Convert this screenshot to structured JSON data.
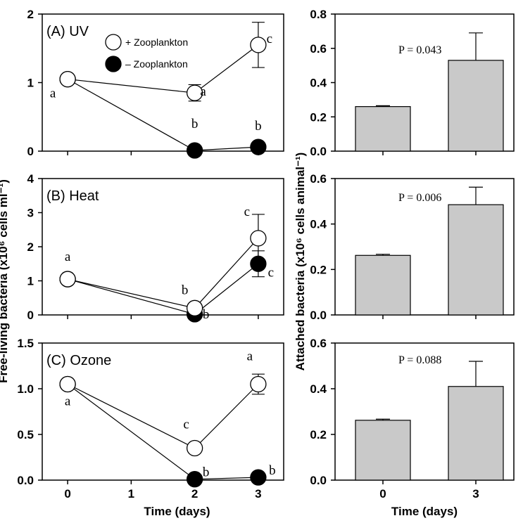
{
  "colors": {
    "open_marker": "#ffffff",
    "filled_marker": "#000000",
    "bar_fill": "#c9c9c9",
    "axis": "#000000"
  },
  "left_ylabel": "Free-living bacteria (x10⁶ cells ml⁻¹)",
  "right_ylabel": "Attached bacteria (x10⁶ cells animal⁻¹)",
  "chart_data": [
    {
      "type": "line",
      "title": "(A) UV",
      "xlabel": "",
      "ylabel": "Free-living bacteria (x10⁶ cells ml⁻¹)",
      "x_ticks": [
        0,
        1,
        2,
        3
      ],
      "x_tick_labels": [],
      "xlim": [
        -0.4,
        3.4
      ],
      "ylim": [
        0,
        2
      ],
      "y_ticks": [
        0,
        1,
        2
      ],
      "y_tick_labels": [
        "0",
        "1",
        "2"
      ],
      "legend": {
        "position": "top-right",
        "entries": [
          "+ Zooplankton",
          "– Zooplankton"
        ]
      },
      "series": [
        {
          "name": "+ Zooplankton",
          "marker": "open",
          "x": [
            0,
            2,
            3
          ],
          "y": [
            1.05,
            0.85,
            1.55
          ],
          "err": [
            0,
            0.12,
            0.33
          ],
          "labels": [
            "a",
            "a",
            "c"
          ]
        },
        {
          "name": "– Zooplankton",
          "marker": "filled",
          "x": [
            0,
            2,
            3
          ],
          "y": [
            1.05,
            0.01,
            0.06
          ],
          "err": [
            0,
            0,
            0
          ],
          "labels": [
            "",
            "b",
            "b"
          ]
        }
      ]
    },
    {
      "type": "line",
      "title": "(B) Heat",
      "xlabel": "",
      "ylabel": "Free-living bacteria (x10⁶ cells ml⁻¹)",
      "x_ticks": [
        0,
        1,
        2,
        3
      ],
      "x_tick_labels": [],
      "xlim": [
        -0.4,
        3.4
      ],
      "ylim": [
        0,
        4
      ],
      "y_ticks": [
        0,
        1,
        2,
        3,
        4
      ],
      "y_tick_labels": [
        "0",
        "1",
        "2",
        "3",
        "4"
      ],
      "series": [
        {
          "name": "+ Zooplankton",
          "marker": "open",
          "x": [
            0,
            2,
            3
          ],
          "y": [
            1.05,
            0.2,
            2.25
          ],
          "err": [
            0,
            0,
            0.7
          ],
          "labels": [
            "a",
            "b",
            "c"
          ]
        },
        {
          "name": "– Zooplankton",
          "marker": "filled",
          "x": [
            0,
            2,
            3
          ],
          "y": [
            1.05,
            0.02,
            1.5
          ],
          "err": [
            0,
            0,
            0.38
          ],
          "labels": [
            "",
            "b",
            "c"
          ]
        }
      ]
    },
    {
      "type": "line",
      "title": "(C) Ozone",
      "xlabel": "Time (days)",
      "ylabel": "Free-living bacteria (x10⁶ cells ml⁻¹)",
      "x_ticks": [
        0,
        1,
        2,
        3
      ],
      "x_tick_labels": [
        "0",
        "1",
        "2",
        "3"
      ],
      "xlim": [
        -0.4,
        3.4
      ],
      "ylim": [
        0,
        1.5
      ],
      "y_ticks": [
        0,
        0.5,
        1,
        1.5
      ],
      "y_tick_labels": [
        "0.0",
        "0.5",
        "1.0",
        "1.5"
      ],
      "series": [
        {
          "name": "+ Zooplankton",
          "marker": "open",
          "x": [
            0,
            2,
            3
          ],
          "y": [
            1.05,
            0.35,
            1.05
          ],
          "err": [
            0,
            0,
            0.11
          ],
          "labels": [
            "a",
            "c",
            "a"
          ]
        },
        {
          "name": "– Zooplankton",
          "marker": "filled",
          "x": [
            0,
            2,
            3
          ],
          "y": [
            1.05,
            0.01,
            0.03
          ],
          "err": [
            0,
            0,
            0
          ],
          "labels": [
            "",
            "b",
            "b"
          ]
        }
      ]
    },
    {
      "type": "bar",
      "title": "",
      "xlabel": "",
      "ylabel": "Attached bacteria (x10⁶ cells animal⁻¹)",
      "categories": [
        "0",
        "3"
      ],
      "x_tick_labels": [],
      "values": [
        0.26,
        0.53
      ],
      "err": [
        0.005,
        0.16
      ],
      "ylim": [
        0,
        0.8
      ],
      "y_ticks": [
        0,
        0.2,
        0.4,
        0.6,
        0.8
      ],
      "y_tick_labels": [
        "0.0",
        "0.2",
        "0.4",
        "0.6",
        "0.8"
      ],
      "annotation": "P = 0.043"
    },
    {
      "type": "bar",
      "title": "",
      "xlabel": "",
      "ylabel": "Attached bacteria (x10⁶ cells animal⁻¹)",
      "categories": [
        "0",
        "3"
      ],
      "x_tick_labels": [],
      "values": [
        0.262,
        0.485
      ],
      "err": [
        0.005,
        0.077
      ],
      "ylim": [
        0,
        0.6
      ],
      "y_ticks": [
        0,
        0.2,
        0.4,
        0.6
      ],
      "y_tick_labels": [
        "0.0",
        "0.2",
        "0.4",
        "0.6"
      ],
      "annotation": "P = 0.006"
    },
    {
      "type": "bar",
      "title": "",
      "xlabel": "Time (days)",
      "ylabel": "Attached bacteria (x10⁶ cells animal⁻¹)",
      "categories": [
        "0",
        "3"
      ],
      "x_tick_labels": [
        "0",
        "3"
      ],
      "values": [
        0.262,
        0.41
      ],
      "err": [
        0.005,
        0.11
      ],
      "ylim": [
        0,
        0.6
      ],
      "y_ticks": [
        0,
        0.2,
        0.4,
        0.6
      ],
      "y_tick_labels": [
        "0.0",
        "0.2",
        "0.4",
        "0.6"
      ],
      "annotation": "P = 0.088"
    }
  ]
}
